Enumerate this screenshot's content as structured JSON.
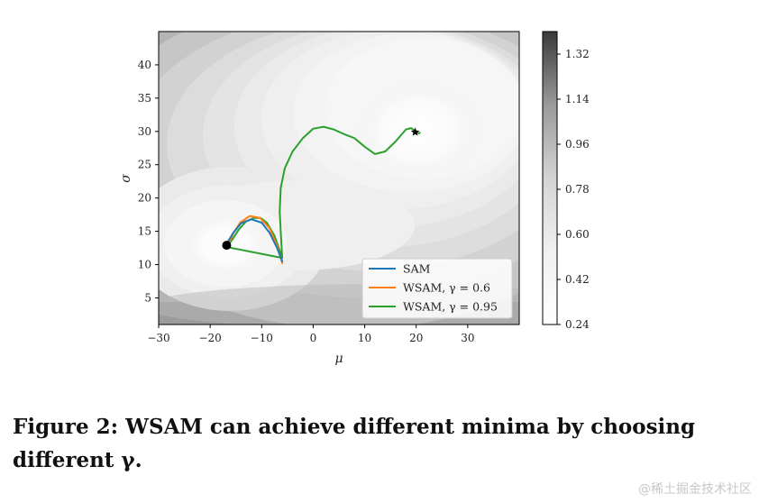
{
  "chart_data": {
    "type": "contour",
    "xlabel": "μ",
    "ylabel": "σ",
    "xlim": [
      -30,
      40
    ],
    "ylim": [
      1,
      45
    ],
    "xticks": [
      -30,
      -20,
      -10,
      0,
      10,
      20,
      30
    ],
    "xtick_labels": [
      "−30",
      "−20",
      "−10",
      "0",
      "10",
      "20",
      "30"
    ],
    "yticks": [
      5,
      10,
      15,
      20,
      25,
      30,
      35,
      40
    ],
    "ytick_labels": [
      "5",
      "10",
      "15",
      "20",
      "25",
      "30",
      "35",
      "40"
    ],
    "colorbar": {
      "range": [
        0.24,
        1.41
      ],
      "ticks": [
        0.24,
        0.42,
        0.6,
        0.78,
        0.96,
        1.14,
        1.32
      ],
      "tick_labels": [
        "0.24",
        "0.42",
        "0.60",
        "0.78",
        "0.96",
        "1.14",
        "1.32"
      ],
      "colormap": "Greys"
    },
    "legend_position": "lower right",
    "series": [
      {
        "name": "SAM",
        "color": "#1f77b4",
        "x": [
          -6,
          -7,
          -8.5,
          -10,
          -12,
          -14,
          -15.5,
          -16.5,
          -17
        ],
        "y": [
          10.5,
          12.5,
          14.8,
          16.3,
          16.8,
          16.2,
          14.8,
          13.5,
          12.7
        ]
      },
      {
        "name": "WSAM, γ = 0.6",
        "color": "#ff7f0e",
        "x": [
          -6,
          -7,
          -8.5,
          -10.3,
          -12.3,
          -14.2,
          -15.5,
          -16.2,
          -16.8
        ],
        "y": [
          10.2,
          12.8,
          15.5,
          17,
          17.3,
          16.3,
          14.7,
          13.5,
          12.6
        ]
      },
      {
        "name": "WSAM, γ = 0.95",
        "color": "#2ca02c",
        "x": [
          -6,
          -6,
          -6,
          -7.5,
          -9,
          -10.2,
          -11.5,
          -13,
          -14.5,
          -15.5,
          -16.4,
          -16.8,
          -16.5,
          -6,
          -6.3,
          -6.5,
          -6.3,
          -5.5,
          -4,
          -2,
          0,
          2,
          4,
          6,
          8,
          10,
          12,
          14,
          16,
          18,
          19,
          20,
          20.5,
          20.7
        ],
        "y": [
          11,
          11,
          11,
          14.3,
          16.3,
          17,
          17,
          16.5,
          15.2,
          14,
          13,
          12.7,
          12.6,
          11,
          15,
          18,
          21.5,
          24.5,
          27,
          29,
          30.4,
          30.7,
          30.3,
          29.6,
          29,
          27.7,
          26.6,
          27,
          28.5,
          30.3,
          30.5,
          30,
          29.7,
          29.8
        ]
      },
      {
        "name": "Start",
        "color": "#000000",
        "x": [
          -16.8
        ],
        "y": [
          12.9
        ]
      },
      {
        "name": "End",
        "color": "#000000",
        "x": [
          19.8
        ],
        "y": [
          29.9
        ]
      }
    ]
  },
  "caption": "Figure 2: WSAM can achieve different minima by choosing different γ.",
  "watermark": "@稀土掘金技术社区"
}
